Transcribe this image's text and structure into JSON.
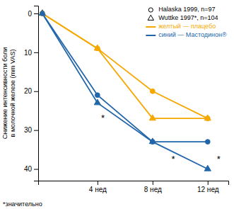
{
  "chart_data": {
    "type": "line",
    "x": [
      0,
      4,
      8,
      12
    ],
    "series": [
      {
        "color": "#F5A800",
        "marker": "circle",
        "values": [
          0,
          9,
          20,
          27
        ]
      },
      {
        "color": "#2266AA",
        "marker": "circle",
        "values": [
          0,
          21,
          33,
          33
        ]
      },
      {
        "color": "#F5A800",
        "marker": "triangle",
        "values": [
          0,
          9,
          27,
          27
        ]
      },
      {
        "color": "#2266AA",
        "marker": "triangle",
        "values": [
          0,
          23,
          33,
          40
        ]
      }
    ],
    "y_label": "Снижение интенсивности боли\nв молочной железе (mm VAS)",
    "xlim": [
      -0.3,
      13.5
    ],
    "xticks": [
      {
        "value": 4,
        "label": "4 нед"
      },
      {
        "value": 8,
        "label": "8 нед"
      },
      {
        "value": 12,
        "label": "12 нед"
      }
    ],
    "ylim": [
      43,
      -2
    ],
    "yticks": [
      0,
      10,
      20,
      30,
      40
    ],
    "grid": false,
    "legend": "upper right",
    "legend_entries": [
      {
        "label": "Halaska 1999, n=97",
        "marker": "circle"
      },
      {
        "label": "Wuttke 1997*, n=104",
        "marker": "triangle"
      },
      {
        "label": "желтый — плацебо",
        "color": "#F5A800"
      },
      {
        "label": "синий — Мастодинон®",
        "color": "#2266AA"
      }
    ],
    "annotations": [
      {
        "text": "*",
        "x": 4.4,
        "y": 26
      },
      {
        "text": "*",
        "x": 9.5,
        "y": 36.5
      },
      {
        "text": "*",
        "x": 12.8,
        "y": 36.5
      }
    ],
    "footnote": "*значительно"
  }
}
